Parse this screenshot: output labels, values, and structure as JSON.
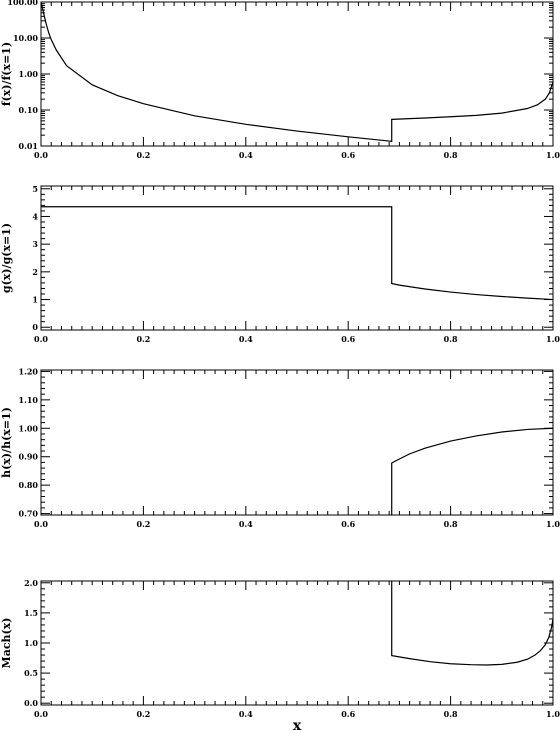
{
  "chart_data": [
    {
      "type": "line",
      "ylabel": "f(x)/f(x=1)",
      "yscale": "log",
      "xlim": [
        0.0,
        1.0
      ],
      "ylim": [
        0.01,
        100.0
      ],
      "yticks": [
        0.01,
        0.1,
        1.0,
        10.0,
        100.0
      ],
      "ytick_labels": [
        "0.01",
        "0.10",
        "1.00",
        "10.00",
        "100.00"
      ],
      "xticks": [
        0.0,
        0.2,
        0.4,
        0.6,
        0.8,
        1.0
      ],
      "xtick_labels": [
        "0.0",
        "0.2",
        "0.4",
        "0.6",
        "0.8",
        "1.0"
      ],
      "grid": false,
      "series": [
        {
          "x": [
            0.0,
            0.005,
            0.01,
            0.015,
            0.02,
            0.03,
            0.05,
            0.1,
            0.15,
            0.2,
            0.3,
            0.4,
            0.5,
            0.6,
            0.685,
            0.685,
            0.75,
            0.8,
            0.85,
            0.9,
            0.95,
            0.97,
            0.985,
            0.993,
            1.0
          ],
          "y": [
            100,
            50,
            25,
            14,
            9,
            4.6,
            1.7,
            0.5,
            0.25,
            0.15,
            0.069,
            0.04,
            0.026,
            0.018,
            0.0135,
            0.055,
            0.06,
            0.065,
            0.071,
            0.082,
            0.11,
            0.14,
            0.2,
            0.3,
            0.6
          ]
        }
      ]
    },
    {
      "type": "line",
      "ylabel": "g(x)/g(x=1)",
      "yscale": "linear",
      "xlim": [
        0.0,
        1.0
      ],
      "ylim": [
        -0.1,
        5.1
      ],
      "yticks": [
        0,
        1,
        2,
        3,
        4,
        5
      ],
      "ytick_labels": [
        "0",
        "1",
        "2",
        "3",
        "4",
        "5"
      ],
      "xticks": [
        0.0,
        0.2,
        0.4,
        0.6,
        0.8,
        1.0
      ],
      "xtick_labels": [
        "0.0",
        "0.2",
        "0.4",
        "0.6",
        "0.8",
        "1.0"
      ],
      "grid": false,
      "series": [
        {
          "x": [
            0.0,
            0.685,
            0.685,
            0.7,
            0.75,
            0.8,
            0.85,
            0.9,
            0.95,
            1.0
          ],
          "y": [
            4.35,
            4.35,
            1.58,
            1.52,
            1.38,
            1.27,
            1.18,
            1.11,
            1.05,
            1.0
          ]
        }
      ]
    },
    {
      "type": "line",
      "ylabel": "h(x)/h(x=1)",
      "yscale": "linear",
      "xlim": [
        0.0,
        1.0
      ],
      "ylim": [
        0.695,
        1.205
      ],
      "yticks": [
        0.7,
        0.8,
        0.9,
        1.0,
        1.1,
        1.2
      ],
      "ytick_labels": [
        "0.70",
        "0.80",
        "0.90",
        "1.00",
        "1.10",
        "1.20"
      ],
      "xticks": [
        0.0,
        0.2,
        0.4,
        0.6,
        0.8,
        1.0
      ],
      "xtick_labels": [
        "0.0",
        "0.2",
        "0.4",
        "0.6",
        "0.8",
        "1.0"
      ],
      "grid": false,
      "series": [
        {
          "x": [
            0.685,
            0.685,
            0.7,
            0.72,
            0.75,
            0.8,
            0.85,
            0.9,
            0.95,
            1.0
          ],
          "y": [
            0.695,
            0.878,
            0.892,
            0.91,
            0.93,
            0.955,
            0.973,
            0.987,
            0.996,
            1.0
          ]
        }
      ]
    },
    {
      "type": "line",
      "ylabel": "Mach(x)",
      "yscale": "linear",
      "xlim": [
        0.0,
        1.0
      ],
      "ylim": [
        -0.03,
        2.03
      ],
      "yticks": [
        0.0,
        0.5,
        1.0,
        1.5,
        2.0
      ],
      "ytick_labels": [
        "0.0",
        "0.5",
        "1.0",
        "1.5",
        "2.0"
      ],
      "xticks": [
        0.0,
        0.2,
        0.4,
        0.6,
        0.8,
        1.0
      ],
      "xtick_labels": [
        "0.0",
        "0.2",
        "0.4",
        "0.6",
        "0.8",
        "1.0"
      ],
      "xlabel": "x",
      "grid": false,
      "series": [
        {
          "x": [
            0.685,
            0.685,
            0.72,
            0.76,
            0.8,
            0.84,
            0.87,
            0.9,
            0.93,
            0.95,
            0.965,
            0.975,
            0.985,
            0.992,
            0.997,
            1.0
          ],
          "y": [
            2.03,
            0.79,
            0.74,
            0.69,
            0.655,
            0.64,
            0.635,
            0.645,
            0.68,
            0.73,
            0.8,
            0.87,
            0.97,
            1.1,
            1.25,
            1.4
          ]
        }
      ]
    }
  ]
}
